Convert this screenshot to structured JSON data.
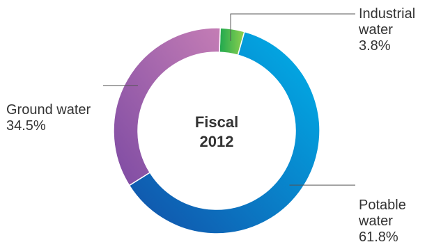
{
  "chart_data": {
    "type": "pie",
    "variant": "donut",
    "center_text": [
      "Fiscal",
      "2012"
    ],
    "slices": [
      {
        "label_lines": [
          "Industrial",
          "water"
        ],
        "value": 3.8,
        "value_label": "3.8%",
        "colors": [
          "#1fa84f",
          "#8fd14f"
        ]
      },
      {
        "label_lines": [
          "Potable",
          "water"
        ],
        "value": 61.8,
        "value_label": "61.8%",
        "colors": [
          "#00b2ea",
          "#1250a8"
        ]
      },
      {
        "label_lines": [
          "Ground water"
        ],
        "value": 34.5,
        "value_label": "34.5%",
        "colors": [
          "#7e4ba3",
          "#c47db5"
        ]
      }
    ]
  }
}
